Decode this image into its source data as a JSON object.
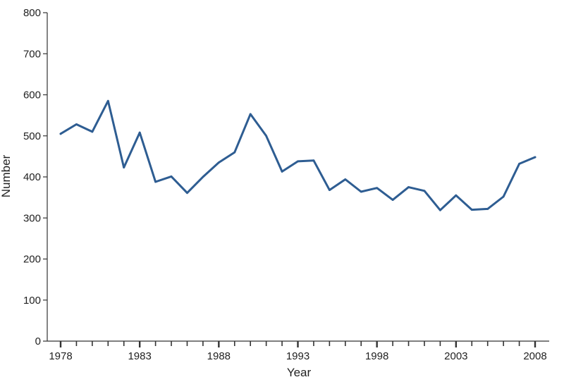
{
  "chart_data": {
    "type": "line",
    "title": "",
    "xlabel": "Year",
    "ylabel": "Number",
    "xlim": [
      1978,
      2008
    ],
    "ylim": [
      0,
      800
    ],
    "x_tick_labels": [
      "1978",
      "1983",
      "1988",
      "1993",
      "1998",
      "2003",
      "2008"
    ],
    "y_tick_labels": [
      "0",
      "100",
      "200",
      "300",
      "400",
      "500",
      "600",
      "700",
      "800"
    ],
    "grid": false,
    "legend": "none",
    "line_color": "#2e5d92",
    "series": [
      {
        "x": [
          1978,
          1979,
          1980,
          1981,
          1982,
          1983,
          1984,
          1985,
          1986,
          1987,
          1988,
          1989,
          1990,
          1991,
          1992,
          1993,
          1994,
          1995,
          1996,
          1997,
          1998,
          1999,
          2000,
          2001,
          2002,
          2003,
          2004,
          2005,
          2006,
          2007,
          2008
        ],
        "values": [
          505,
          528,
          510,
          585,
          423,
          508,
          388,
          401,
          361,
          400,
          435,
          460,
          553,
          500,
          413,
          438,
          440,
          368,
          394,
          364,
          373,
          344,
          375,
          366,
          319,
          355,
          320,
          322,
          352,
          432,
          448
        ]
      }
    ]
  }
}
